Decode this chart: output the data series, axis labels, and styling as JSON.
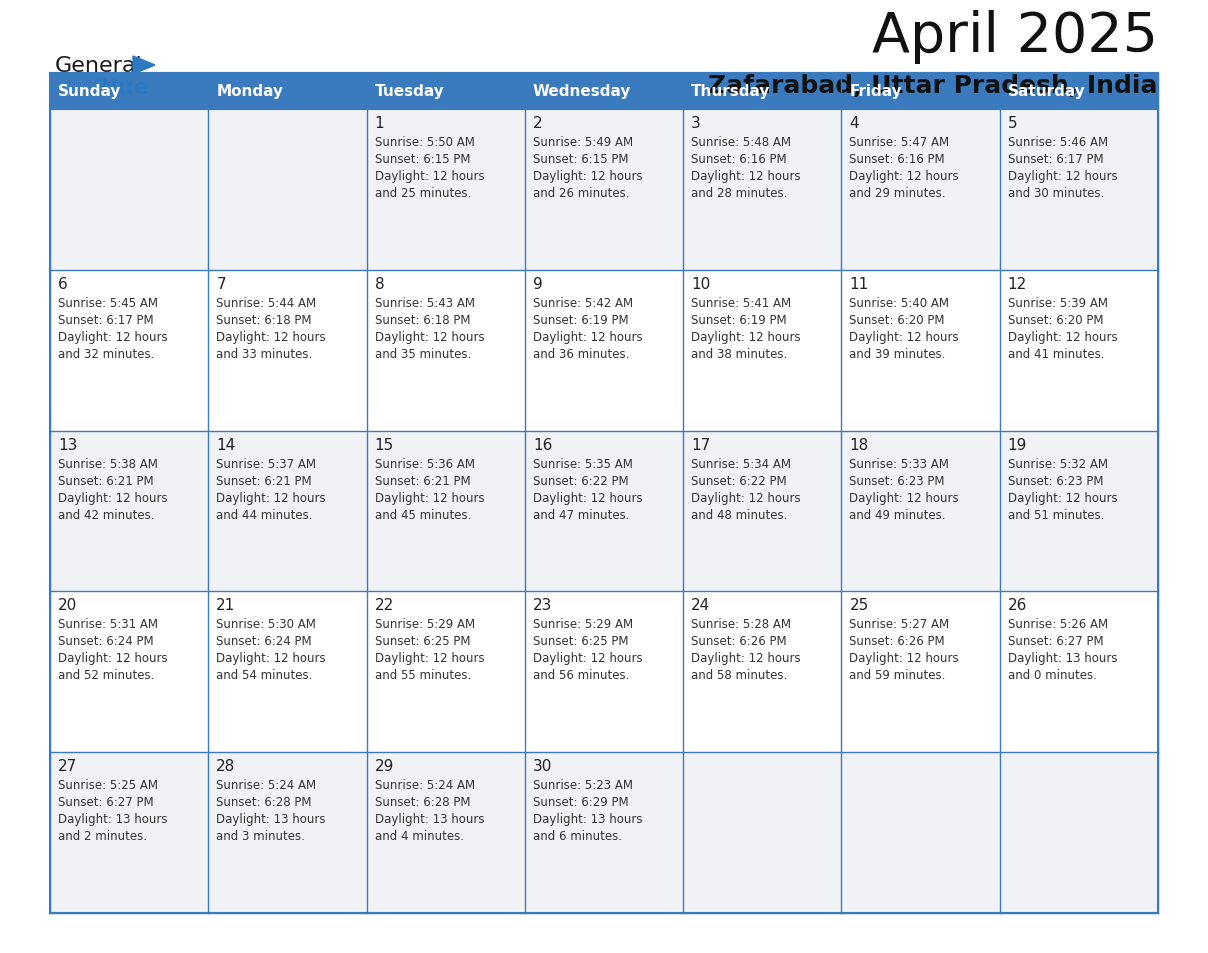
{
  "title": "April 2025",
  "subtitle": "Zafarabad, Uttar Pradesh, India",
  "header_bg": "#3a7abf",
  "header_text_color": "#ffffff",
  "border_color": "#3a7abf",
  "cell_bg_odd": "#f0f2f5",
  "cell_bg_even": "#ffffff",
  "text_color": "#222222",
  "day_names": [
    "Sunday",
    "Monday",
    "Tuesday",
    "Wednesday",
    "Thursday",
    "Friday",
    "Saturday"
  ],
  "weeks": [
    [
      {
        "day": "",
        "sunrise": "",
        "sunset": "",
        "daylight": ""
      },
      {
        "day": "",
        "sunrise": "",
        "sunset": "",
        "daylight": ""
      },
      {
        "day": "1",
        "sunrise": "5:50 AM",
        "sunset": "6:15 PM",
        "daylight": "12 hours and 25 minutes."
      },
      {
        "day": "2",
        "sunrise": "5:49 AM",
        "sunset": "6:15 PM",
        "daylight": "12 hours and 26 minutes."
      },
      {
        "day": "3",
        "sunrise": "5:48 AM",
        "sunset": "6:16 PM",
        "daylight": "12 hours and 28 minutes."
      },
      {
        "day": "4",
        "sunrise": "5:47 AM",
        "sunset": "6:16 PM",
        "daylight": "12 hours and 29 minutes."
      },
      {
        "day": "5",
        "sunrise": "5:46 AM",
        "sunset": "6:17 PM",
        "daylight": "12 hours and 30 minutes."
      }
    ],
    [
      {
        "day": "6",
        "sunrise": "5:45 AM",
        "sunset": "6:17 PM",
        "daylight": "12 hours and 32 minutes."
      },
      {
        "day": "7",
        "sunrise": "5:44 AM",
        "sunset": "6:18 PM",
        "daylight": "12 hours and 33 minutes."
      },
      {
        "day": "8",
        "sunrise": "5:43 AM",
        "sunset": "6:18 PM",
        "daylight": "12 hours and 35 minutes."
      },
      {
        "day": "9",
        "sunrise": "5:42 AM",
        "sunset": "6:19 PM",
        "daylight": "12 hours and 36 minutes."
      },
      {
        "day": "10",
        "sunrise": "5:41 AM",
        "sunset": "6:19 PM",
        "daylight": "12 hours and 38 minutes."
      },
      {
        "day": "11",
        "sunrise": "5:40 AM",
        "sunset": "6:20 PM",
        "daylight": "12 hours and 39 minutes."
      },
      {
        "day": "12",
        "sunrise": "5:39 AM",
        "sunset": "6:20 PM",
        "daylight": "12 hours and 41 minutes."
      }
    ],
    [
      {
        "day": "13",
        "sunrise": "5:38 AM",
        "sunset": "6:21 PM",
        "daylight": "12 hours and 42 minutes."
      },
      {
        "day": "14",
        "sunrise": "5:37 AM",
        "sunset": "6:21 PM",
        "daylight": "12 hours and 44 minutes."
      },
      {
        "day": "15",
        "sunrise": "5:36 AM",
        "sunset": "6:21 PM",
        "daylight": "12 hours and 45 minutes."
      },
      {
        "day": "16",
        "sunrise": "5:35 AM",
        "sunset": "6:22 PM",
        "daylight": "12 hours and 47 minutes."
      },
      {
        "day": "17",
        "sunrise": "5:34 AM",
        "sunset": "6:22 PM",
        "daylight": "12 hours and 48 minutes."
      },
      {
        "day": "18",
        "sunrise": "5:33 AM",
        "sunset": "6:23 PM",
        "daylight": "12 hours and 49 minutes."
      },
      {
        "day": "19",
        "sunrise": "5:32 AM",
        "sunset": "6:23 PM",
        "daylight": "12 hours and 51 minutes."
      }
    ],
    [
      {
        "day": "20",
        "sunrise": "5:31 AM",
        "sunset": "6:24 PM",
        "daylight": "12 hours and 52 minutes."
      },
      {
        "day": "21",
        "sunrise": "5:30 AM",
        "sunset": "6:24 PM",
        "daylight": "12 hours and 54 minutes."
      },
      {
        "day": "22",
        "sunrise": "5:29 AM",
        "sunset": "6:25 PM",
        "daylight": "12 hours and 55 minutes."
      },
      {
        "day": "23",
        "sunrise": "5:29 AM",
        "sunset": "6:25 PM",
        "daylight": "12 hours and 56 minutes."
      },
      {
        "day": "24",
        "sunrise": "5:28 AM",
        "sunset": "6:26 PM",
        "daylight": "12 hours and 58 minutes."
      },
      {
        "day": "25",
        "sunrise": "5:27 AM",
        "sunset": "6:26 PM",
        "daylight": "12 hours and 59 minutes."
      },
      {
        "day": "26",
        "sunrise": "5:26 AM",
        "sunset": "6:27 PM",
        "daylight": "13 hours and 0 minutes."
      }
    ],
    [
      {
        "day": "27",
        "sunrise": "5:25 AM",
        "sunset": "6:27 PM",
        "daylight": "13 hours and 2 minutes."
      },
      {
        "day": "28",
        "sunrise": "5:24 AM",
        "sunset": "6:28 PM",
        "daylight": "13 hours and 3 minutes."
      },
      {
        "day": "29",
        "sunrise": "5:24 AM",
        "sunset": "6:28 PM",
        "daylight": "13 hours and 4 minutes."
      },
      {
        "day": "30",
        "sunrise": "5:23 AM",
        "sunset": "6:29 PM",
        "daylight": "13 hours and 6 minutes."
      },
      {
        "day": "",
        "sunrise": "",
        "sunset": "",
        "daylight": ""
      },
      {
        "day": "",
        "sunrise": "",
        "sunset": "",
        "daylight": ""
      },
      {
        "day": "",
        "sunrise": "",
        "sunset": "",
        "daylight": ""
      }
    ]
  ],
  "logo_text1": "General",
  "logo_text2": "Blue",
  "logo_text1_color": "#1a1a1a",
  "logo_text2_color": "#2b79c2",
  "logo_triangle_color": "#2b79c2",
  "title_fontsize": 40,
  "subtitle_fontsize": 18,
  "header_fontsize": 11,
  "day_num_fontsize": 11,
  "cell_text_fontsize": 8.5
}
